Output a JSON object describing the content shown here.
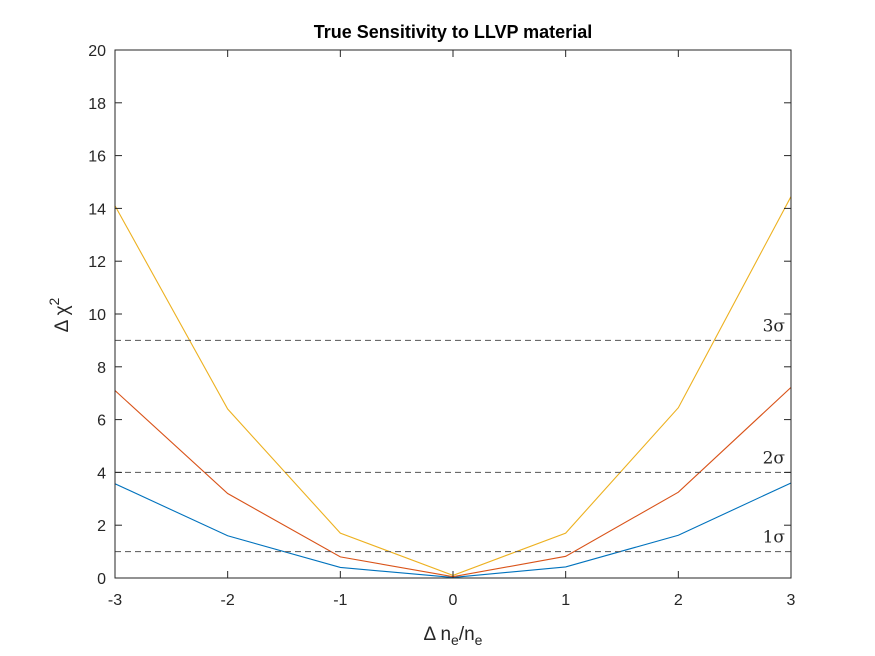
{
  "chart_data": {
    "type": "line",
    "title": "True Sensitivity to LLVP material",
    "xlabel": {
      "prefix": "Δ n",
      "sub1": "e",
      "mid": "/n",
      "sub2": "e"
    },
    "ylabel": {
      "base": "Δ χ",
      "sup": "2"
    },
    "xlim": [
      -3,
      3
    ],
    "ylim": [
      0,
      20
    ],
    "xticks": [
      -3,
      -2,
      -1,
      0,
      1,
      2,
      3
    ],
    "yticks": [
      0,
      2,
      4,
      6,
      8,
      10,
      12,
      14,
      16,
      18,
      20
    ],
    "x": [
      -3,
      -2,
      -1,
      0,
      1,
      2,
      3
    ],
    "series": [
      {
        "values": [
          3.57,
          1.6,
          0.4,
          0.02,
          0.42,
          1.62,
          3.6
        ],
        "color": "#0072BD"
      },
      {
        "values": [
          7.1,
          3.2,
          0.8,
          0.05,
          0.82,
          3.25,
          7.22
        ],
        "color": "#D95319"
      },
      {
        "values": [
          14.1,
          6.4,
          1.7,
          0.1,
          1.7,
          6.45,
          14.45
        ],
        "color": "#EDB120"
      }
    ],
    "reference_lines": [
      {
        "y": 1,
        "label": "1σ"
      },
      {
        "y": 4,
        "label": "2σ"
      },
      {
        "y": 9,
        "label": "3σ"
      }
    ],
    "grid": false,
    "box": true,
    "reference_line_color": "#555555",
    "axis_color": "#262626"
  }
}
